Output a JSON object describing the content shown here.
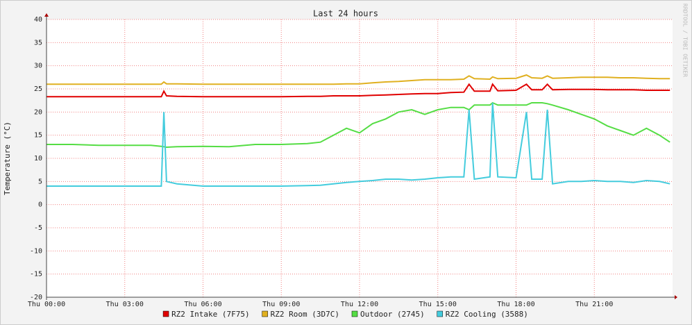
{
  "chart_data": {
    "type": "line",
    "title": "Last 24 hours",
    "y_label": "Temperature (°C)",
    "watermark": "RRDTOOL / TOBI OETIKER",
    "x": [
      0,
      1,
      2,
      3,
      4,
      4.4,
      4.5,
      4.6,
      5,
      6,
      7,
      8,
      9,
      10,
      10.5,
      11,
      11.5,
      12,
      12.5,
      13,
      13.5,
      14,
      14.5,
      15,
      15.5,
      16,
      16.2,
      16.4,
      17,
      17.1,
      17.3,
      18,
      18.4,
      18.6,
      19,
      19.2,
      19.4,
      20,
      20.5,
      21,
      21.5,
      22,
      22.5,
      23,
      23.5,
      23.9
    ],
    "xlim": [
      0,
      24
    ],
    "xticks": [
      {
        "value": 0,
        "label": "Thu 00:00"
      },
      {
        "value": 3,
        "label": "Thu 03:00"
      },
      {
        "value": 6,
        "label": "Thu 06:00"
      },
      {
        "value": 9,
        "label": "Thu 09:00"
      },
      {
        "value": 12,
        "label": "Thu 12:00"
      },
      {
        "value": 15,
        "label": "Thu 15:00"
      },
      {
        "value": 18,
        "label": "Thu 18:00"
      },
      {
        "value": 21,
        "label": "Thu 21:00"
      }
    ],
    "ylim": [
      -20,
      40
    ],
    "yticks": [
      -20,
      -15,
      -10,
      -5,
      0,
      5,
      10,
      15,
      20,
      25,
      30,
      35,
      40
    ],
    "grid": true,
    "series": [
      {
        "name": "RZ2 Intake (7F75)",
        "color": "#e00000",
        "values": [
          23.3,
          23.3,
          23.3,
          23.3,
          23.3,
          23.3,
          24.5,
          23.5,
          23.4,
          23.3,
          23.3,
          23.3,
          23.3,
          23.4,
          23.4,
          23.5,
          23.5,
          23.5,
          23.6,
          23.7,
          23.8,
          23.9,
          24,
          24,
          24.2,
          24.3,
          26,
          24.5,
          24.5,
          26,
          24.6,
          24.7,
          26,
          24.8,
          24.8,
          26,
          24.8,
          24.9,
          24.9,
          24.9,
          24.8,
          24.8,
          24.8,
          24.7,
          24.7,
          24.7
        ]
      },
      {
        "name": "RZ2 Room (3D7C)",
        "color": "#e0b020",
        "values": [
          26,
          26,
          26,
          26,
          26,
          26,
          26.5,
          26.1,
          26.1,
          26,
          26,
          26,
          26,
          26,
          26,
          26,
          26.1,
          26.1,
          26.3,
          26.5,
          26.6,
          26.8,
          27,
          27,
          27,
          27.1,
          27.8,
          27.2,
          27.1,
          27.6,
          27.2,
          27.3,
          28,
          27.4,
          27.3,
          27.8,
          27.3,
          27.4,
          27.5,
          27.5,
          27.5,
          27.4,
          27.4,
          27.3,
          27.2,
          27.2
        ]
      },
      {
        "name": "Outdoor (2745)",
        "color": "#55dd44",
        "values": [
          13,
          13,
          12.8,
          12.8,
          12.8,
          12.6,
          12.5,
          12.4,
          12.5,
          12.6,
          12.5,
          13,
          13,
          13.2,
          13.5,
          15,
          16.5,
          15.5,
          17.5,
          18.5,
          20,
          20.5,
          19.5,
          20.5,
          21,
          21,
          20.5,
          21.5,
          21.5,
          22,
          21.5,
          21.5,
          21.5,
          22,
          22,
          21.8,
          21.5,
          20.5,
          19.5,
          18.5,
          17,
          16,
          15,
          16.5,
          15,
          13.5
        ]
      },
      {
        "name": "RZ2 Cooling (3588)",
        "color": "#44ccdd",
        "values": [
          4,
          4,
          4,
          4,
          4,
          4,
          20,
          5,
          4.5,
          4,
          4,
          4,
          4,
          4.1,
          4.2,
          4.5,
          4.8,
          5,
          5.2,
          5.5,
          5.5,
          5.3,
          5.5,
          5.8,
          6,
          6,
          20.5,
          5.5,
          6,
          22,
          6,
          5.8,
          20,
          5.5,
          5.5,
          20.5,
          4.5,
          5,
          5,
          5.2,
          5,
          5,
          4.8,
          5.2,
          5,
          4.5
        ]
      }
    ]
  }
}
